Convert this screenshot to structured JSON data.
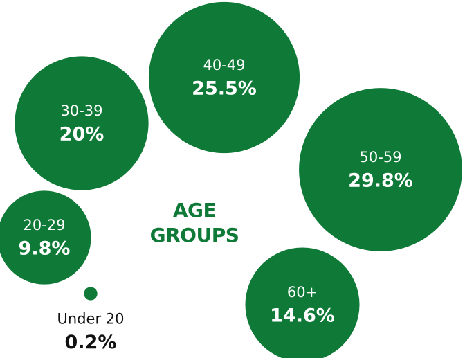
{
  "chart_data": {
    "type": "bubble",
    "title": "AGE GROUPS",
    "categories": [
      "Under 20",
      "20-29",
      "30-39",
      "40-49",
      "50-59",
      "60+"
    ],
    "values": [
      0.2,
      9.8,
      20,
      25.5,
      29.8,
      14.6
    ],
    "value_labels": [
      "0.2%",
      "9.8%",
      "20%",
      "25.5%",
      "29.8%",
      "14.6%"
    ],
    "color": "#0f7a37"
  }
}
